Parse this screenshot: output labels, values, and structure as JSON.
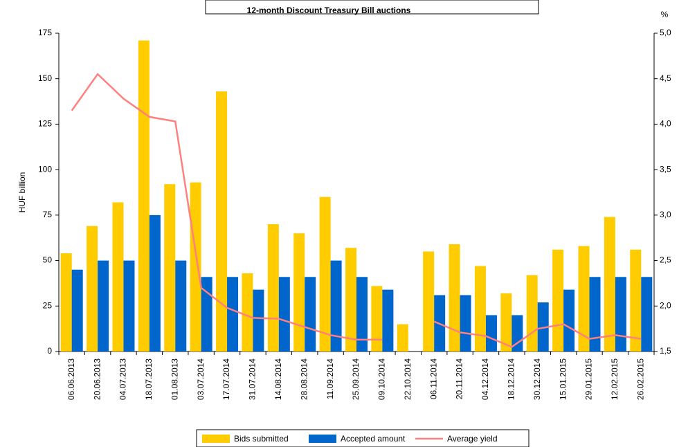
{
  "chart_data": {
    "type": "bar",
    "title": "12-month Discount Treasury Bill auctions",
    "y_label": "HUF billion",
    "y2_label": "%",
    "categories": [
      "06.06.2013",
      "20.06.2013",
      "04.07.2013",
      "18.07.2013",
      "01.08.2013",
      "03.07.2014",
      "17.07.2014",
      "31.07.2014",
      "14.08.2014",
      "28.08.2014",
      "11.09.2014",
      "25.09.2014",
      "09.10.2014",
      "22.10.2014",
      "06.11.2014",
      "20.11.2014",
      "04.12.2014",
      "18.12.2014",
      "30.12.2014",
      "15.01.2015",
      "29.01.2015",
      "12.02.2015",
      "26.02.2015"
    ],
    "series": [
      {
        "name": "Bids submitted",
        "color": "#ffcc00",
        "type": "bar",
        "values": [
          54,
          69,
          82,
          171,
          92,
          93,
          143,
          43,
          70,
          65,
          85,
          57,
          36,
          15,
          55,
          59,
          47,
          32,
          42,
          56,
          58,
          74,
          56
        ]
      },
      {
        "name": "Accepted amount",
        "color": "#0066cc",
        "type": "bar",
        "values": [
          45,
          50,
          50,
          75,
          50,
          41,
          41,
          34,
          41,
          41,
          50,
          41,
          34,
          0,
          31,
          31,
          20,
          20,
          27,
          34,
          41,
          41,
          41
        ]
      },
      {
        "name": "Average yield",
        "color": "#ff8080",
        "type": "line",
        "axis": "y2",
        "values": [
          4.15,
          4.55,
          4.28,
          4.08,
          4.03,
          2.2,
          1.98,
          1.87,
          1.86,
          1.77,
          1.68,
          1.63,
          1.63,
          null,
          1.83,
          1.71,
          1.67,
          1.55,
          1.75,
          1.8,
          1.64,
          1.68,
          1.64
        ]
      }
    ],
    "ylim": [
      0,
      175
    ],
    "yticks": [
      0,
      25,
      50,
      75,
      100,
      125,
      150,
      175
    ],
    "y2lim": [
      1.5,
      5.0
    ],
    "y2ticks": [
      {
        "value": 1.5,
        "label": "1,5"
      },
      {
        "value": 2.0,
        "label": "2,0"
      },
      {
        "value": 2.5,
        "label": "2,5"
      },
      {
        "value": 3.0,
        "label": "3,0"
      },
      {
        "value": 3.5,
        "label": "3,5"
      },
      {
        "value": 4.0,
        "label": "4,0"
      },
      {
        "value": 4.5,
        "label": "4,5"
      },
      {
        "value": 5.0,
        "label": "5,0"
      }
    ],
    "grid": false,
    "legend": "bottom"
  }
}
